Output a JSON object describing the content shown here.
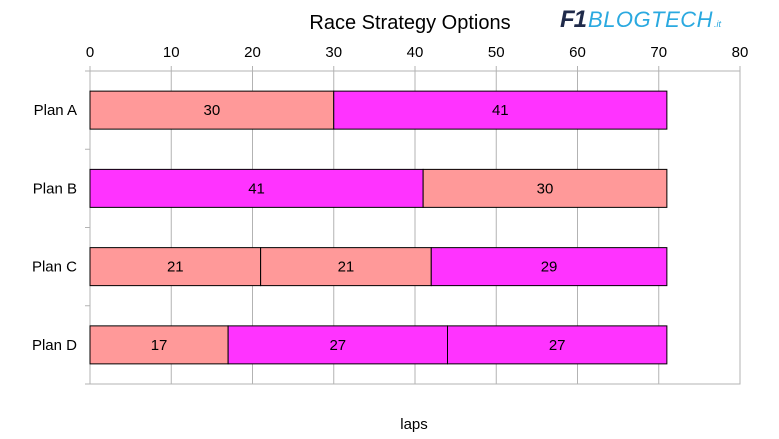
{
  "logo": {
    "mark": "F1",
    "name": "BLOGTECH",
    "tld": ".it"
  },
  "chart_data": {
    "type": "bar",
    "orientation": "horizontal",
    "stacked": true,
    "title": "Race Strategy Options",
    "xlabel": "laps",
    "ylabel": "",
    "xlim": [
      0,
      80
    ],
    "xticks": [
      0,
      10,
      20,
      30,
      40,
      50,
      60,
      70,
      80
    ],
    "x_axis_position": "top",
    "grid": true,
    "legend": "none",
    "categories": [
      "Plan A",
      "Plan B",
      "Plan C",
      "Plan D"
    ],
    "colors": {
      "soft": "#ff9999",
      "medium": "#ff33ff"
    },
    "bars": [
      {
        "category": "Plan A",
        "stints": [
          {
            "laps": 30,
            "color": "#ff9999"
          },
          {
            "laps": 41,
            "color": "#ff33ff"
          }
        ]
      },
      {
        "category": "Plan B",
        "stints": [
          {
            "laps": 41,
            "color": "#ff33ff"
          },
          {
            "laps": 30,
            "color": "#ff9999"
          }
        ]
      },
      {
        "category": "Plan C",
        "stints": [
          {
            "laps": 21,
            "color": "#ff9999"
          },
          {
            "laps": 21,
            "color": "#ff9999"
          },
          {
            "laps": 29,
            "color": "#ff33ff"
          }
        ]
      },
      {
        "category": "Plan D",
        "stints": [
          {
            "laps": 17,
            "color": "#ff9999"
          },
          {
            "laps": 27,
            "color": "#ff33ff"
          },
          {
            "laps": 27,
            "color": "#ff33ff"
          }
        ]
      }
    ]
  }
}
